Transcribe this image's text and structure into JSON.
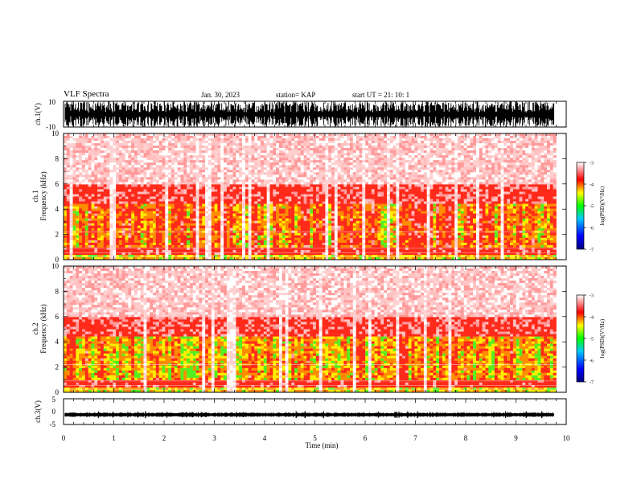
{
  "header": {
    "title": "VLF Spectra",
    "date": "Jan. 30, 2023",
    "station": "station= KAP",
    "start_ut": "start UT =  21: 10: 1"
  },
  "chart_data": [
    {
      "type": "line",
      "panel": "ch1-waveform",
      "ylabel": "ch.1(V)",
      "ylim": [
        -10,
        10
      ],
      "y_ticks": [
        "10",
        "-10"
      ],
      "xlim": [
        0,
        10
      ],
      "description_values": {
        "min": -10,
        "max": 10
      }
    },
    {
      "type": "heatmap",
      "panel": "ch1-spectrogram",
      "ylabel": "ch.1  Frequency (kHz)",
      "ylim": [
        0,
        10
      ],
      "y_ticks": [
        "0",
        "2",
        "4",
        "6",
        "8",
        "10"
      ],
      "xlim": [
        0,
        9.8
      ],
      "colorbar": {
        "label": "log(PSD)(V²/Hz)",
        "range": [
          -7,
          -3
        ],
        "ticks": [
          "-3",
          "-4",
          "-5",
          "-6",
          "-7"
        ]
      }
    },
    {
      "type": "heatmap",
      "panel": "ch2-spectrogram",
      "ylabel": "ch.2  Frequency (kHz)",
      "ylim": [
        0,
        10
      ],
      "y_ticks": [
        "0",
        "2",
        "4",
        "6",
        "8",
        "10"
      ],
      "xlim": [
        0,
        9.8
      ],
      "colorbar": {
        "label": "log(PSD)(V²/Hz)",
        "range": [
          -7,
          -3
        ],
        "ticks": [
          "-3",
          "-4",
          "-5",
          "-6",
          "-7"
        ]
      }
    },
    {
      "type": "line",
      "panel": "ch3-waveform",
      "ylabel": "ch.3(V)",
      "ylim": [
        -5,
        5
      ],
      "y_ticks": [
        "5",
        "0",
        "-5"
      ],
      "xlim": [
        0,
        10
      ],
      "baseline": -1.2
    }
  ],
  "x_axis": {
    "label": "Time (min)",
    "ticks": [
      "0",
      "1",
      "2",
      "3",
      "4",
      "5",
      "6",
      "7",
      "8",
      "9",
      "10"
    ],
    "range": [
      0,
      10
    ]
  },
  "colors": {
    "background": "#ffffff",
    "trace": "#000000",
    "colormap": [
      "#000080",
      "#0000ff",
      "#00c0ff",
      "#00ff00",
      "#ffff00",
      "#ff0000",
      "#ffffff"
    ]
  }
}
